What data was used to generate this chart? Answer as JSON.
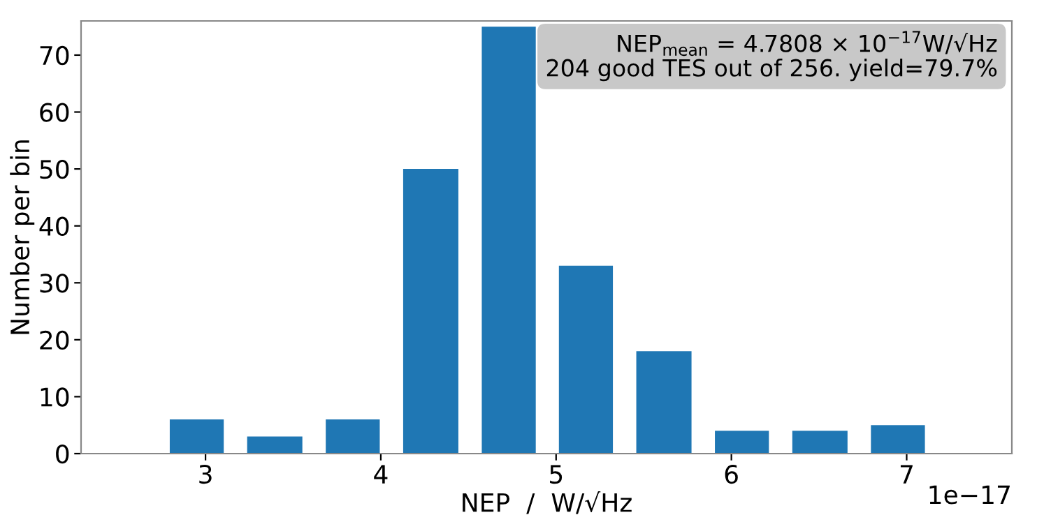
{
  "chart_data": {
    "type": "histogram",
    "xlabel": "NEP  /  W/√Hz",
    "ylabel": "Number per bin",
    "bins": [
      2.73,
      3.17,
      3.62,
      4.06,
      4.51,
      4.95,
      5.39,
      5.84,
      6.28,
      6.73,
      7.17
    ],
    "values": [
      6,
      3,
      6,
      50,
      75,
      33,
      18,
      4,
      4,
      5
    ],
    "color": "#1f77b4",
    "xlim": [
      2.29,
      7.6
    ],
    "xticks": [
      3,
      4,
      5,
      6,
      7
    ],
    "ylim": [
      0,
      76
    ],
    "yticks": [
      0,
      10,
      20,
      30,
      40,
      50,
      60,
      70
    ],
    "grid": false,
    "annotations": [
      "NEP$_{mean}$ = 4.7808 × 10$^{−17}$W/√Hz\n204 good TES out of 256. yield=79.7%",
      "1e−17"
    ]
  }
}
